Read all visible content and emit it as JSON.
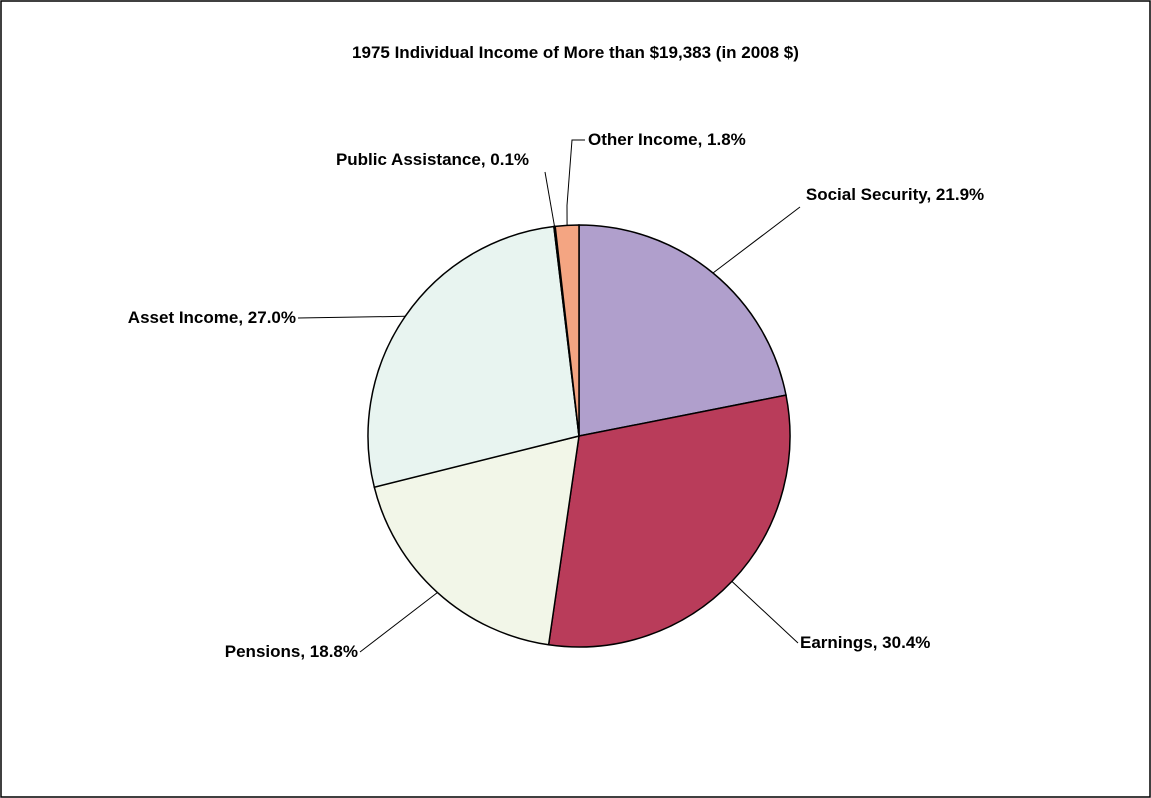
{
  "chart_data": {
    "type": "pie",
    "title": "1975 Individual Income of More than $19,383 (in 2008 $)",
    "categories": [
      "Social Security",
      "Earnings",
      "Pensions",
      "Asset Income",
      "Public Assistance",
      "Other Income"
    ],
    "values": [
      21.9,
      30.4,
      18.8,
      27.0,
      0.1,
      1.8
    ],
    "value_labels": [
      "Social Security, 21.9%",
      "Earnings, 30.4%",
      "Pensions, 18.8%",
      "Asset Income, 27.0%",
      "Public Assistance, 0.1%",
      "Other Income, 1.8%"
    ],
    "colors": [
      "#b09fcc",
      "#b93c5a",
      "#f2f6e8",
      "#e8f4f0",
      "#5a1a2a",
      "#f4a582"
    ]
  }
}
